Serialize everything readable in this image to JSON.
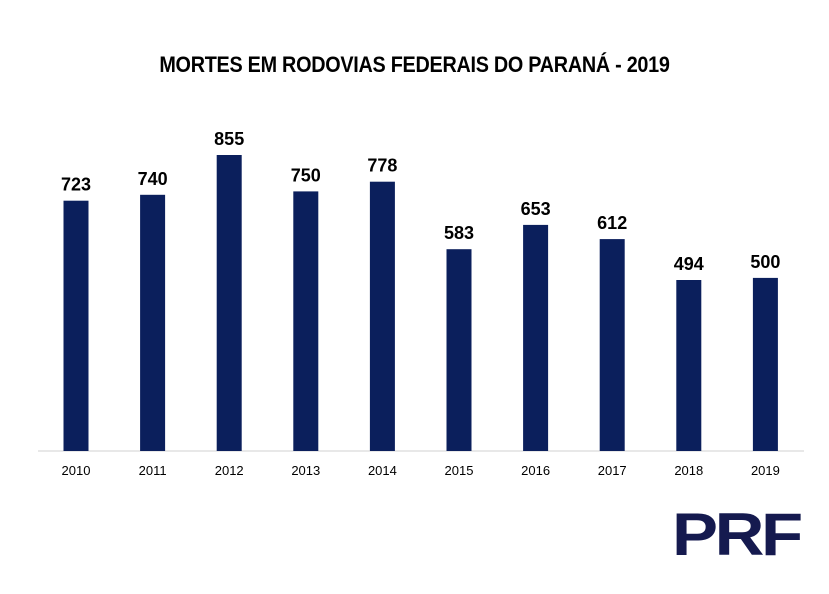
{
  "chart_data": {
    "type": "bar",
    "title": "MORTES EM RODOVIAS FEDERAIS DO PARANÁ - 2019",
    "categories": [
      "2010",
      "2011",
      "2012",
      "2013",
      "2014",
      "2015",
      "2016",
      "2017",
      "2018",
      "2019"
    ],
    "values": [
      723,
      740,
      855,
      750,
      778,
      583,
      653,
      612,
      494,
      500
    ],
    "xlabel": "",
    "ylabel": "",
    "ylim": [
      0,
      855
    ],
    "grid": false,
    "bar_color": "#0b1f5c",
    "axis_color": "#d0d0d0"
  },
  "logo": {
    "text": "PRF",
    "color": "#151a4f"
  }
}
